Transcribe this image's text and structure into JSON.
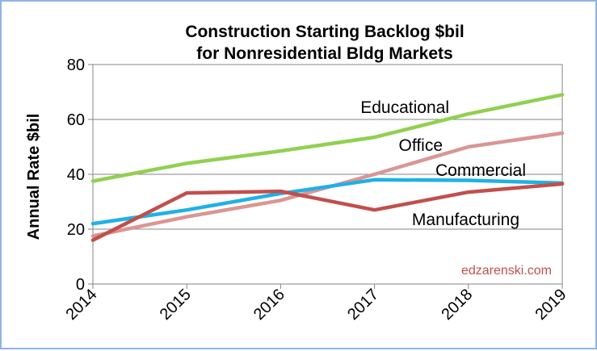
{
  "chart_data": {
    "type": "line",
    "title": "Construction Starting Backlog $bil",
    "subtitle": "for Nonresidential Bldg Markets",
    "xlabel": "",
    "ylabel": "Annual Rate $bil",
    "x": [
      "2014",
      "2015",
      "2016",
      "2017",
      "2018",
      "2019"
    ],
    "ylim": [
      0,
      80
    ],
    "yticks": [
      0,
      20,
      40,
      60,
      80
    ],
    "grid": true,
    "legend": "inline labels",
    "series": [
      {
        "name": "Educational",
        "color": "#92d050",
        "values": [
          37.5,
          44,
          48.5,
          53.5,
          62,
          69
        ]
      },
      {
        "name": "Office",
        "color": "#da9694",
        "values": [
          17.5,
          24.5,
          30.5,
          40,
          50,
          55
        ]
      },
      {
        "name": "Commercial",
        "color": "#1fb1e6",
        "values": [
          22,
          27,
          33,
          38,
          37.8,
          36.8
        ]
      },
      {
        "name": "Manufacturing",
        "color": "#c0504d",
        "values": [
          16,
          33.2,
          33.8,
          27,
          33.5,
          36.5
        ]
      }
    ],
    "watermark": "edzarenski.com",
    "watermark_color": "#c0504d"
  }
}
